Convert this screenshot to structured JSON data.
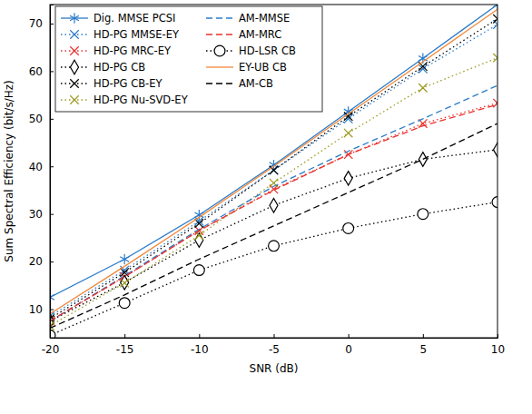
{
  "chart_data": {
    "type": "line",
    "xlabel": "SNR (dB)",
    "ylabel": "Sum Spectral Efficiency (bit/s/Hz)",
    "x": [
      -20,
      -15,
      -10,
      -5,
      0,
      5,
      10
    ],
    "xlim": [
      -20,
      10
    ],
    "xticks": [
      -20,
      -15,
      -10,
      -5,
      0,
      5,
      10
    ],
    "ylim": [
      4,
      74
    ],
    "yticks": [
      10,
      20,
      30,
      40,
      50,
      60,
      70
    ],
    "grid": false,
    "legend": "upper left",
    "series": [
      {
        "name": "Dig. MMSE PCSI",
        "color": "#2b7bc9",
        "marker": "star",
        "line_style": "solid",
        "values": [
          12.5,
          20.5,
          29.8,
          40.3,
          51.5,
          62.7,
          74
        ]
      },
      {
        "name": "HD-PG MMSE-EY",
        "color": "#2b7bc9",
        "marker": "x",
        "line_style": "dotted",
        "values": [
          8.5,
          18.2,
          28.5,
          39.2,
          50,
          60.5,
          69.8
        ]
      },
      {
        "name": "HD-PG MRC-EY",
        "color": "#e8312b",
        "marker": "x",
        "line_style": "dotted",
        "values": [
          7.5,
          16.8,
          26.5,
          35.2,
          42.5,
          49,
          53.3
        ]
      },
      {
        "name": "HD-PG CB",
        "color": "#000000",
        "marker": "diamond",
        "line_style": "dotted",
        "values": [
          7.5,
          15.6,
          24.5,
          31.8,
          37.5,
          41.5,
          43.5
        ]
      },
      {
        "name": "HD-PG CB-EY",
        "color": "#000000",
        "marker": "x",
        "line_style": "dotted",
        "values": [
          8,
          17.7,
          28,
          39.2,
          50.5,
          61,
          71
        ]
      },
      {
        "name": "HD-PG Nu-SVD-EY",
        "color": "#9c9a1f",
        "marker": "x",
        "line_style": "dotted",
        "values": [
          6.5,
          15.5,
          25.5,
          36.5,
          47,
          56.5,
          62.8
        ]
      },
      {
        "name": "AM-MMSE",
        "color": "#2b7bc9",
        "marker": "none",
        "line_style": "dashed",
        "values": [
          7.5,
          17,
          26.8,
          35.8,
          43.2,
          50,
          57
        ]
      },
      {
        "name": "AM-MRC",
        "color": "#e8312b",
        "marker": "none",
        "line_style": "dashed",
        "values": [
          7.5,
          16.8,
          26.5,
          35,
          42.5,
          48.5,
          53
        ]
      },
      {
        "name": "HD-LSR CB",
        "color": "#000000",
        "marker": "circle",
        "line_style": "dotted",
        "values": [
          4.5,
          11.3,
          18.2,
          23.3,
          27,
          30,
          32.5
        ]
      },
      {
        "name": "EY-UB CB",
        "color": "#f0883a",
        "marker": "none",
        "line_style": "solid",
        "values": [
          9,
          19,
          29.3,
          40,
          51,
          62,
          73
        ]
      },
      {
        "name": "AM-CB",
        "color": "#000000",
        "marker": "none",
        "line_style": "dashed",
        "values": [
          6,
          13,
          20.5,
          27.5,
          34.5,
          41.5,
          49
        ]
      }
    ]
  }
}
